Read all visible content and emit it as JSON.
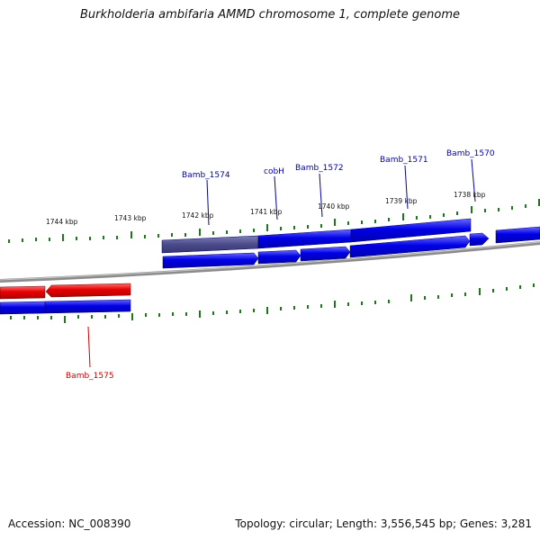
{
  "title": "Burkholderia ambifaria AMMD chromosome 1, complete genome",
  "footer": {
    "accession": "Accession: NC_008390",
    "summary": "Topology: circular; Length: 3,556,545 bp; Genes: 3,281"
  },
  "colors": {
    "forward_gene": "#0000e6",
    "reverse_gene": "#e60000",
    "highlight_gene": "#4b4b8c",
    "forward_label": "#0000aa",
    "reverse_label": "#cc0000",
    "tick": "#1a7a1a",
    "backbone": "#8c8c8c"
  },
  "kbp_labels": [
    "1744 kbp",
    "1743 kbp",
    "1742 kbp",
    "1741 kbp",
    "1740 kbp",
    "1739 kbp",
    "1738 kbp"
  ],
  "gene_labels": {
    "forward": [
      "Bamb_1574",
      "cobH",
      "Bamb_1572",
      "Bamb_1571",
      "Bamb_1570"
    ],
    "reverse": [
      "Bamb_1575"
    ]
  }
}
